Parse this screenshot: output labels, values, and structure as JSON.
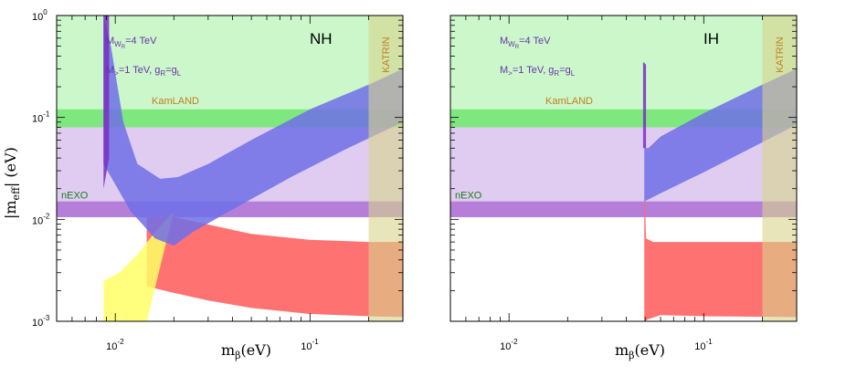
{
  "chart_data": [
    {
      "type": "area",
      "panel": "NH",
      "label": "NH",
      "xlabel": "m",
      "xlabel_sub": "β",
      "xlabel_unit": "(eV)",
      "ylabel": "|m",
      "ylabel_sub": "eff",
      "ylabel_unit": "| (eV)",
      "x_scale": "log",
      "y_scale": "log",
      "xlim": [
        0.005,
        0.3
      ],
      "ylim": [
        0.001,
        1.0
      ],
      "xticks": [
        {
          "value": 0.01,
          "base": "10",
          "exp": "-2"
        },
        {
          "value": 0.1,
          "base": "10",
          "exp": "-1"
        }
      ],
      "yticks": [
        {
          "value": 1,
          "base": "10",
          "exp": "0"
        },
        {
          "value": 0.1,
          "base": "10",
          "exp": "-1"
        },
        {
          "value": 0.01,
          "base": "10",
          "exp": "-2"
        },
        {
          "value": 0.001,
          "base": "10",
          "exp": "-3"
        }
      ],
      "annotations": {
        "line1": {
          "text": "M",
          "sub": "W",
          "subsub": "R",
          "rest": "=4 TeV"
        },
        "line2": {
          "text": "M",
          "sub": ">",
          "rest": "=1 TeV,  g",
          "sub2": "R",
          "rest2": "=g",
          "sub3": "L"
        }
      },
      "bands": [
        {
          "name": "allowed-region",
          "y_range": [
            0.08,
            1.0
          ],
          "color": "#cbf7cb"
        },
        {
          "name": "KamLAND",
          "y_range": [
            0.078,
            0.12
          ],
          "color": "#7ee87e",
          "label": "KamLAND",
          "label_color": "#c08020"
        },
        {
          "name": "intermediate",
          "y_range": [
            0.0105,
            0.08
          ],
          "color": "#e0ccf0"
        },
        {
          "name": "nEXO",
          "y_range": [
            0.0105,
            0.015
          ],
          "color": "#b57fd9",
          "label": "nEXO",
          "label_color": "#1c7a1c"
        }
      ],
      "katrin": {
        "label": "KATRIN",
        "x_range": [
          0.2,
          0.3
        ],
        "color": "#d7d48a"
      },
      "series": [
        {
          "color": "#ff6a6a",
          "lower": [
            [
              0.0145,
              0.0022
            ],
            [
              0.02,
              0.0019
            ],
            [
              0.03,
              0.0016
            ],
            [
              0.05,
              0.00135
            ],
            [
              0.1,
              0.00118
            ],
            [
              0.2,
              0.00112
            ],
            [
              0.3,
              0.0011
            ]
          ],
          "upper": [
            [
              0.0145,
              0.0105
            ],
            [
              0.02,
              0.0105
            ],
            [
              0.03,
              0.0089
            ],
            [
              0.05,
              0.0072
            ],
            [
              0.1,
              0.0063
            ],
            [
              0.2,
              0.006
            ],
            [
              0.3,
              0.006
            ]
          ]
        },
        {
          "color": "#ffff66",
          "lower": [
            [
              0.0087,
              0.001
            ],
            [
              0.0145,
              0.001
            ]
          ],
          "upper": [
            [
              0.0087,
              0.0025
            ],
            [
              0.0105,
              0.003
            ],
            [
              0.013,
              0.0045
            ],
            [
              0.016,
              0.0075
            ],
            [
              0.02,
              0.012
            ]
          ]
        },
        {
          "color": "#6f6fe8",
          "lower": [
            [
              0.0087,
              0.035
            ],
            [
              0.012,
              0.012
            ],
            [
              0.016,
              0.0065
            ],
            [
              0.02,
              0.0055
            ],
            [
              0.025,
              0.0075
            ],
            [
              0.04,
              0.0125
            ],
            [
              0.08,
              0.026
            ],
            [
              0.15,
              0.048
            ],
            [
              0.3,
              0.09
            ]
          ],
          "upper": [
            [
              0.0087,
              1.0
            ],
            [
              0.0095,
              0.5
            ],
            [
              0.011,
              0.09
            ],
            [
              0.013,
              0.035
            ],
            [
              0.017,
              0.025
            ],
            [
              0.021,
              0.026
            ],
            [
              0.03,
              0.035
            ],
            [
              0.05,
              0.06
            ],
            [
              0.1,
              0.12
            ],
            [
              0.2,
              0.21
            ],
            [
              0.3,
              0.3
            ]
          ]
        },
        {
          "color": "#7a2fc0",
          "lower": [
            [
              0.0087,
              0.02
            ],
            [
              0.0093,
              0.04
            ]
          ],
          "upper": [
            [
              0.0087,
              1.0
            ],
            [
              0.0093,
              1.0
            ]
          ]
        }
      ]
    },
    {
      "type": "area",
      "panel": "IH",
      "label": "IH",
      "xlabel": "m",
      "xlabel_sub": "β",
      "xlabel_unit": "(eV)",
      "x_scale": "log",
      "y_scale": "log",
      "xlim": [
        0.005,
        0.3
      ],
      "ylim": [
        0.001,
        1.0
      ],
      "xticks": [
        {
          "value": 0.01,
          "base": "10",
          "exp": "-2"
        },
        {
          "value": 0.1,
          "base": "10",
          "exp": "-1"
        }
      ],
      "annotations": {
        "line1": {
          "text": "M",
          "sub": "W",
          "subsub": "R",
          "rest": "=4 TeV"
        },
        "line2": {
          "text": "M",
          "sub": ">",
          "rest": "=1 TeV, g",
          "sub2": "R",
          "rest2": "=g",
          "sub3": "L"
        }
      },
      "bands": [
        {
          "name": "allowed-region",
          "y_range": [
            0.08,
            1.0
          ],
          "color": "#cbf7cb"
        },
        {
          "name": "KamLAND",
          "y_range": [
            0.078,
            0.12
          ],
          "color": "#7ee87e",
          "label": "KamLAND",
          "label_color": "#c08020"
        },
        {
          "name": "intermediate",
          "y_range": [
            0.0105,
            0.08
          ],
          "color": "#e0ccf0"
        },
        {
          "name": "nEXO",
          "y_range": [
            0.0105,
            0.015
          ],
          "color": "#b57fd9",
          "label": "nEXO",
          "label_color": "#1c7a1c"
        }
      ],
      "katrin": {
        "label": "KATRIN",
        "x_range": [
          0.2,
          0.3
        ],
        "color": "#d7d48a"
      },
      "series": [
        {
          "color": "#ff6a6a",
          "lower": [
            [
              0.0495,
              0.001
            ],
            [
              0.052,
              0.00105
            ],
            [
              0.06,
              0.00115
            ],
            [
              0.1,
              0.00112
            ],
            [
              0.3,
              0.0011
            ]
          ],
          "upper": [
            [
              0.0495,
              0.015
            ],
            [
              0.05,
              0.015
            ],
            [
              0.0505,
              0.0065
            ],
            [
              0.055,
              0.006
            ],
            [
              0.1,
              0.006
            ],
            [
              0.3,
              0.006
            ]
          ]
        },
        {
          "color": "#6f6fe8",
          "lower": [
            [
              0.0495,
              0.015
            ],
            [
              0.06,
              0.018
            ],
            [
              0.1,
              0.029
            ],
            [
              0.2,
              0.057
            ],
            [
              0.3,
              0.085
            ]
          ],
          "upper": [
            [
              0.0495,
              0.05
            ],
            [
              0.052,
              0.05
            ],
            [
              0.06,
              0.065
            ],
            [
              0.1,
              0.11
            ],
            [
              0.2,
              0.21
            ],
            [
              0.3,
              0.3
            ]
          ]
        },
        {
          "color": "#7a2fc0",
          "lower": [
            [
              0.0488,
              0.05
            ],
            [
              0.0505,
              0.05
            ]
          ],
          "upper": [
            [
              0.0488,
              0.35
            ],
            [
              0.0505,
              0.33
            ]
          ]
        }
      ]
    }
  ]
}
